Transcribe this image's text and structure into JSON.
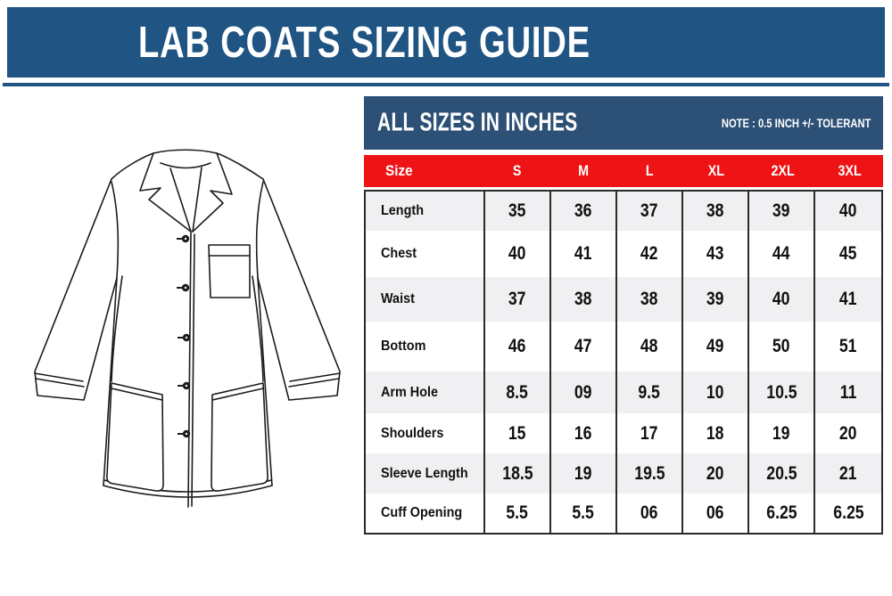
{
  "banner": {
    "title": "LAB COATS SIZING GUIDE"
  },
  "table": {
    "header": {
      "title": "ALL SIZES IN INCHES",
      "note": "NOTE : 0.5 INCH +/- TOLERANT"
    },
    "size_row": {
      "label": "Size",
      "sizes": [
        "S",
        "M",
        "L",
        "XL",
        "2XL",
        "3XL"
      ]
    },
    "rows": [
      {
        "label": "Length",
        "values": [
          "35",
          "36",
          "37",
          "38",
          "39",
          "40"
        ]
      },
      {
        "label": "Chest",
        "values": [
          "40",
          "41",
          "42",
          "43",
          "44",
          "45"
        ]
      },
      {
        "label": "Waist",
        "values": [
          "37",
          "38",
          "38",
          "39",
          "40",
          "41"
        ]
      },
      {
        "label": "Bottom",
        "values": [
          "46",
          "47",
          "48",
          "49",
          "50",
          "51"
        ]
      },
      {
        "label": "Arm Hole",
        "values": [
          "8.5",
          "09",
          "9.5",
          "10",
          "10.5",
          "11"
        ]
      },
      {
        "label": "Shoulders",
        "values": [
          "15",
          "16",
          "17",
          "18",
          "19",
          "20"
        ]
      },
      {
        "label": "Sleeve Length",
        "values": [
          "18.5",
          "19",
          "19.5",
          "20",
          "20.5",
          "21"
        ]
      },
      {
        "label": "Cuff Opening",
        "values": [
          "5.5",
          "5.5",
          "06",
          "06",
          "6.25",
          "6.25"
        ]
      }
    ]
  },
  "illustration": {
    "description": "lab coat technical line drawing"
  },
  "colors": {
    "banner_blue": "#1f5483",
    "table_header_blue": "#2d5176",
    "size_row_red": "#ee1416",
    "alt_row_gray": "#f0f0f2",
    "border_dark": "#2b2b2b"
  }
}
